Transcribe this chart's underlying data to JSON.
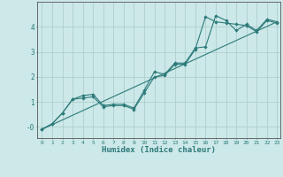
{
  "xlabel": "Humidex (Indice chaleur)",
  "bg_color": "#cce8e8",
  "line_color": "#2d7a7a",
  "grid_color": "#afd0d0",
  "xlim": [
    -0.5,
    23.3
  ],
  "ylim": [
    -0.45,
    5.0
  ],
  "xticks": [
    0,
    1,
    2,
    3,
    4,
    5,
    6,
    7,
    8,
    9,
    10,
    11,
    12,
    13,
    14,
    15,
    16,
    17,
    18,
    19,
    20,
    21,
    22,
    23
  ],
  "yticks": [
    0,
    1,
    2,
    3,
    4
  ],
  "ytick_labels": [
    "-0",
    "1",
    "2",
    "3",
    "4"
  ],
  "line1_x": [
    0,
    1,
    2,
    3,
    4,
    5,
    6,
    7,
    8,
    9,
    10,
    11,
    12,
    13,
    14,
    15,
    16,
    17,
    18,
    19,
    20,
    21,
    22,
    23
  ],
  "line1_y": [
    -0.1,
    0.12,
    0.55,
    1.1,
    1.25,
    1.3,
    0.85,
    0.9,
    0.9,
    0.75,
    1.45,
    2.2,
    2.1,
    2.55,
    2.55,
    3.15,
    3.2,
    4.45,
    4.25,
    3.85,
    4.1,
    3.85,
    4.3,
    4.2
  ],
  "line2_x": [
    0,
    1,
    2,
    3,
    4,
    5,
    6,
    7,
    8,
    9,
    10,
    11,
    12,
    13,
    14,
    15,
    16,
    17,
    18,
    19,
    20,
    21,
    22,
    23
  ],
  "line2_y": [
    -0.1,
    0.12,
    0.55,
    1.1,
    1.15,
    1.2,
    0.8,
    0.85,
    0.85,
    0.7,
    1.35,
    2.0,
    2.05,
    2.5,
    2.5,
    3.1,
    4.4,
    4.2,
    4.15,
    4.1,
    4.05,
    3.8,
    4.25,
    4.15
  ],
  "line3_x": [
    0,
    23
  ],
  "line3_y": [
    -0.1,
    4.2
  ]
}
